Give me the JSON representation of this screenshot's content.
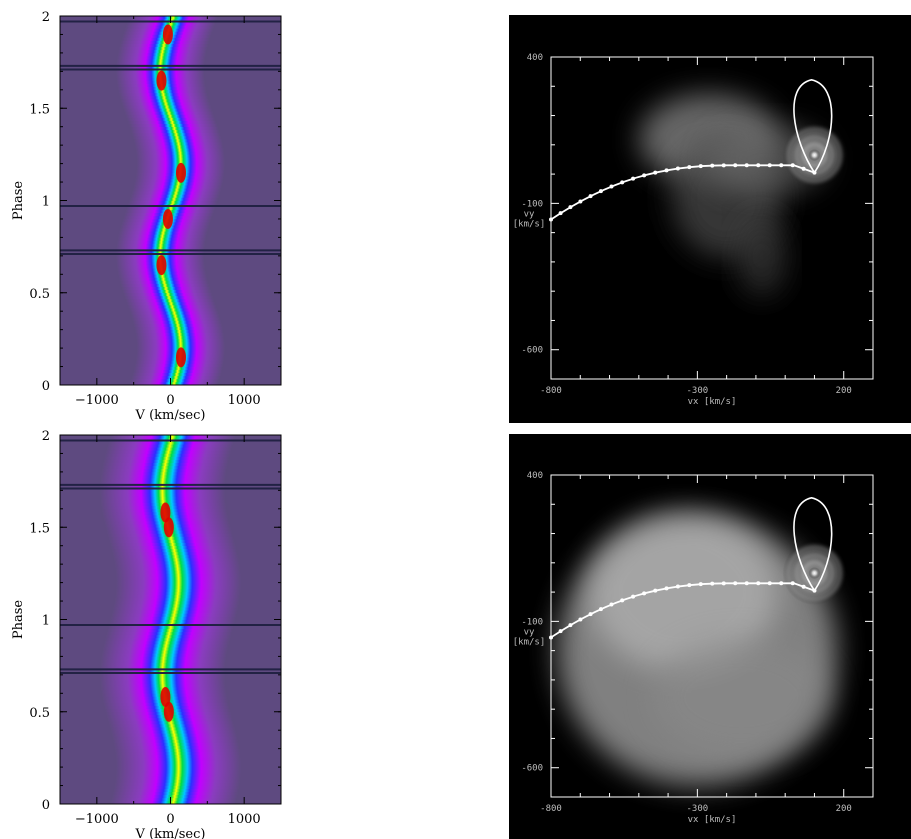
{
  "chart_data": [
    {
      "type": "heatmap",
      "panel": "trailed-spectrogram-top",
      "xlabel": "V (km/sec)",
      "ylabel": "Phase",
      "xlim": [
        -1500,
        1500
      ],
      "ylim": [
        0,
        2
      ],
      "x_ticks": [
        -1000,
        0,
        1000
      ],
      "y_ticks": [
        0,
        0.5,
        1,
        1.5,
        2
      ],
      "x_tick_labels": [
        "−1000",
        "0",
        "1000"
      ],
      "y_tick_labels": [
        "0",
        "0.5",
        "1",
        "1.5",
        "2"
      ],
      "gap_phases": [
        0.71,
        0.73,
        0.97,
        1.71,
        1.73,
        1.97
      ],
      "colors": [
        "#6a4f8a",
        "#c000ff",
        "#0030ff",
        "#00e0ff",
        "#00dd33",
        "#ffff00",
        "#e00000"
      ]
    },
    {
      "type": "heatmap",
      "panel": "doppler-map-top",
      "xlabel": "vx [km/s]",
      "ylabel": "vy [km/s]",
      "ylabel_lines": [
        "vy",
        "[km/s]"
      ],
      "xlim": [
        -800,
        300
      ],
      "ylim": [
        -700,
        400
      ],
      "x_ticks": [
        -800,
        -300,
        200
      ],
      "y_ticks": [
        400,
        -100,
        -600
      ],
      "x_tick_labels": [
        "-800",
        "-300",
        "200"
      ],
      "y_tick_labels": [
        "400",
        "-100",
        "-600"
      ],
      "colors": [
        "#000000",
        "#ffffff"
      ]
    },
    {
      "type": "heatmap",
      "panel": "trailed-spectrogram-bottom",
      "xlabel": "V (km/sec)",
      "ylabel": "Phase",
      "xlim": [
        -1500,
        1500
      ],
      "ylim": [
        0,
        2
      ],
      "x_ticks": [
        -1000,
        0,
        1000
      ],
      "y_ticks": [
        0,
        0.5,
        1,
        1.5,
        2
      ],
      "x_tick_labels": [
        "−1000",
        "0",
        "1000"
      ],
      "y_tick_labels": [
        "0",
        "0.5",
        "1",
        "1.5",
        "2"
      ],
      "gap_phases": [
        0.71,
        0.73,
        0.97,
        1.71,
        1.73,
        1.97
      ],
      "colors": [
        "#6a4f8a",
        "#c000ff",
        "#0030ff",
        "#00e0ff",
        "#00dd33",
        "#ffff00",
        "#e00000"
      ]
    },
    {
      "type": "heatmap",
      "panel": "doppler-map-bottom",
      "xlabel": "vx [km/s]",
      "ylabel": "vy [km/s]",
      "ylabel_lines": [
        "vy",
        "[km/s]"
      ],
      "xlim": [
        -800,
        300
      ],
      "ylim": [
        -700,
        400
      ],
      "x_ticks": [
        -800,
        -300,
        200
      ],
      "y_ticks": [
        400,
        -100,
        -600
      ],
      "x_tick_labels": [
        "-800",
        "-300",
        "200"
      ],
      "y_tick_labels": [
        "400",
        "-100",
        "-600"
      ],
      "colors": [
        "#000000",
        "#ffffff"
      ]
    }
  ]
}
